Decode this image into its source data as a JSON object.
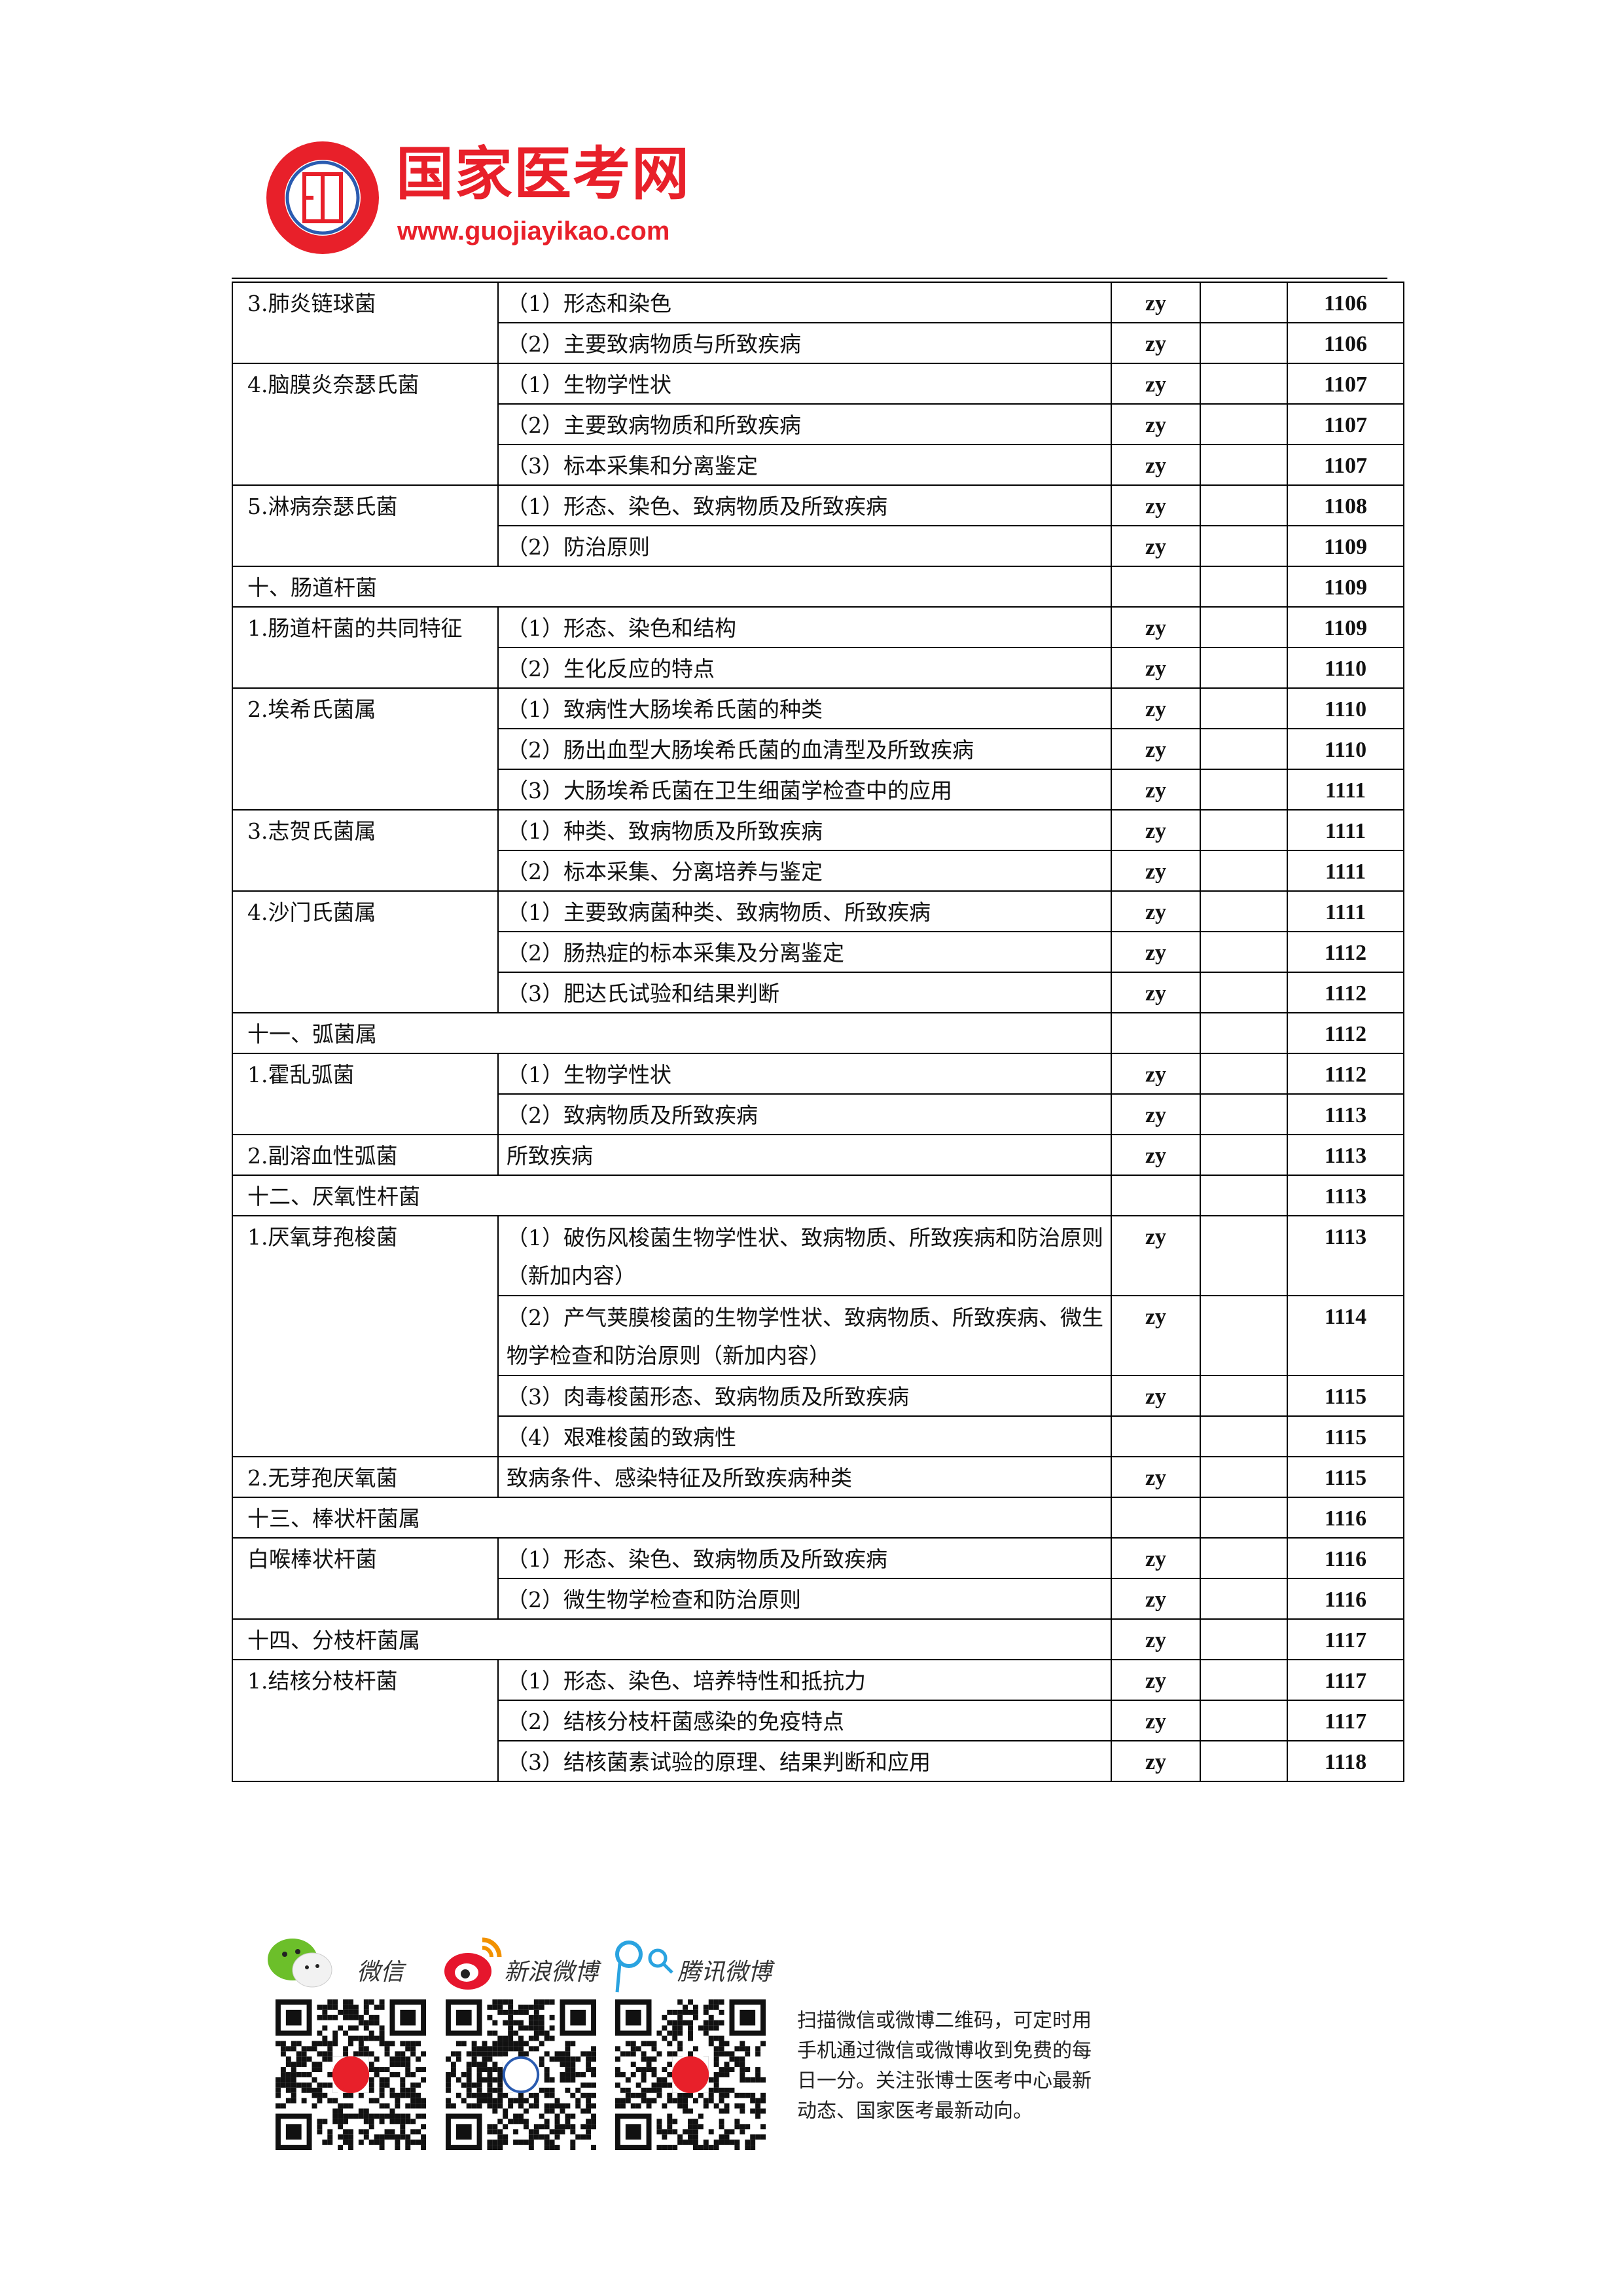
{
  "header": {
    "brand_name": "国家医考网",
    "brand_url": "www.guojiayikao.com",
    "brand_color": "#e8202a",
    "seal_text": "国家医考网"
  },
  "table": {
    "rows": [
      {
        "type": "group",
        "name": "3.肺炎链球菌",
        "items": [
          {
            "text": "（1）形态和染色",
            "mark": "zy",
            "page": "1106"
          },
          {
            "text": "（2）主要致病物质与所致疾病",
            "mark": "zy",
            "page": "1106"
          }
        ]
      },
      {
        "type": "group",
        "name": "4.脑膜炎奈瑟氏菌",
        "items": [
          {
            "text": "（1）生物学性状",
            "mark": "zy",
            "page": "1107"
          },
          {
            "text": "（2）主要致病物质和所致疾病",
            "mark": "zy",
            "page": "1107"
          },
          {
            "text": "（3）标本采集和分离鉴定",
            "mark": "zy",
            "page": "1107"
          }
        ]
      },
      {
        "type": "group",
        "name": "5.淋病奈瑟氏菌",
        "items": [
          {
            "text": "（1）形态、染色、致病物质及所致疾病",
            "mark": "zy",
            "page": "1108"
          },
          {
            "text": "（2）防治原则",
            "mark": "zy",
            "page": "1109"
          }
        ]
      },
      {
        "type": "section",
        "name": "十、肠道杆菌",
        "mark": "",
        "page": "1109"
      },
      {
        "type": "group",
        "name": "1.肠道杆菌的共同特征",
        "items": [
          {
            "text": "（1）形态、染色和结构",
            "mark": "zy",
            "page": "1109"
          },
          {
            "text": "（2）生化反应的特点",
            "mark": "zy",
            "page": "1110"
          }
        ]
      },
      {
        "type": "group",
        "name": "2.埃希氏菌属",
        "items": [
          {
            "text": "（1）致病性大肠埃希氏菌的种类",
            "mark": "zy",
            "page": "1110"
          },
          {
            "text": "（2）肠出血型大肠埃希氏菌的血清型及所致疾病",
            "mark": "zy",
            "page": "1110"
          },
          {
            "text": "（3）大肠埃希氏菌在卫生细菌学检查中的应用",
            "mark": "zy",
            "page": "1111"
          }
        ]
      },
      {
        "type": "group",
        "name": "3.志贺氏菌属",
        "items": [
          {
            "text": "（1）种类、致病物质及所致疾病",
            "mark": "zy",
            "page": "1111"
          },
          {
            "text": "（2）标本采集、分离培养与鉴定",
            "mark": "zy",
            "page": "1111"
          }
        ]
      },
      {
        "type": "group",
        "name": "4.沙门氏菌属",
        "items": [
          {
            "text": "（1）主要致病菌种类、致病物质、所致疾病",
            "mark": "zy",
            "page": "1111"
          },
          {
            "text": "（2）肠热症的标本采集及分离鉴定",
            "mark": "zy",
            "page": "1112"
          },
          {
            "text": "（3）肥达氏试验和结果判断",
            "mark": "zy",
            "page": "1112"
          }
        ]
      },
      {
        "type": "section",
        "name": "十一、弧菌属",
        "mark": "",
        "page": "1112"
      },
      {
        "type": "group",
        "name": "1.霍乱弧菌",
        "items": [
          {
            "text": "（1）生物学性状",
            "mark": "zy",
            "page": "1112"
          },
          {
            "text": "（2）致病物质及所致疾病",
            "mark": "zy",
            "page": "1113"
          }
        ]
      },
      {
        "type": "group",
        "name": "2.副溶血性弧菌",
        "items": [
          {
            "text": "所致疾病",
            "mark": "zy",
            "page": "1113"
          }
        ]
      },
      {
        "type": "section",
        "name": "十二、厌氧性杆菌",
        "mark": "",
        "page": "1113"
      },
      {
        "type": "group",
        "name": "1.厌氧芽孢梭菌",
        "items": [
          {
            "text": "（1）破伤风梭菌生物学性状、致病物质、所致疾病和防治原则（新加内容）",
            "mark": "zy",
            "page": "1113",
            "tall": true
          },
          {
            "text": "（2）产气荚膜梭菌的生物学性状、致病物质、所致疾病、微生物学检查和防治原则（新加内容）",
            "mark": "zy",
            "page": "1114",
            "tall": true
          },
          {
            "text": "（3）肉毒梭菌形态、致病物质及所致疾病",
            "mark": "zy",
            "page": "1115"
          },
          {
            "text": "（4）艰难梭菌的致病性",
            "mark": "",
            "page": "1115"
          }
        ]
      },
      {
        "type": "group",
        "name": "2.无芽孢厌氧菌",
        "items": [
          {
            "text": "致病条件、感染特征及所致疾病种类",
            "mark": "zy",
            "page": "1115"
          }
        ]
      },
      {
        "type": "section",
        "name": "十三、棒状杆菌属",
        "mark": "",
        "page": "1116"
      },
      {
        "type": "group",
        "name": "白喉棒状杆菌",
        "items": [
          {
            "text": "（1）形态、染色、致病物质及所致疾病",
            "mark": "zy",
            "page": "1116"
          },
          {
            "text": "（2）微生物学检查和防治原则",
            "mark": "zy",
            "page": "1116"
          }
        ]
      },
      {
        "type": "section",
        "name": "十四、分枝杆菌属",
        "mark": "zy",
        "page": "1117"
      },
      {
        "type": "group",
        "name": "1.结核分枝杆菌",
        "items": [
          {
            "text": "（1）形态、染色、培养特性和抵抗力",
            "mark": "zy",
            "page": "1117"
          },
          {
            "text": "（2）结核分枝杆菌感染的免疫特点",
            "mark": "zy",
            "page": "1117"
          },
          {
            "text": "（3）结核菌素试验的原理、结果判断和应用",
            "mark": "zy",
            "page": "1118"
          }
        ]
      }
    ]
  },
  "footer": {
    "social": [
      {
        "label": "微信",
        "icon": "wechat-icon",
        "color": "#6cbf2a"
      },
      {
        "label": "新浪微博",
        "icon": "weibo-icon",
        "color": "#e6162d"
      },
      {
        "label": "腾讯微博",
        "icon": "tencent-weibo-icon",
        "color": "#2aa3e0"
      }
    ],
    "lines": [
      "扫描微信或微博二维码，可定时用",
      "手机通过微信或微博收到免费的每",
      "日一分。关注张博士医考中心最新",
      "动态、国家医考最新动向。"
    ]
  }
}
